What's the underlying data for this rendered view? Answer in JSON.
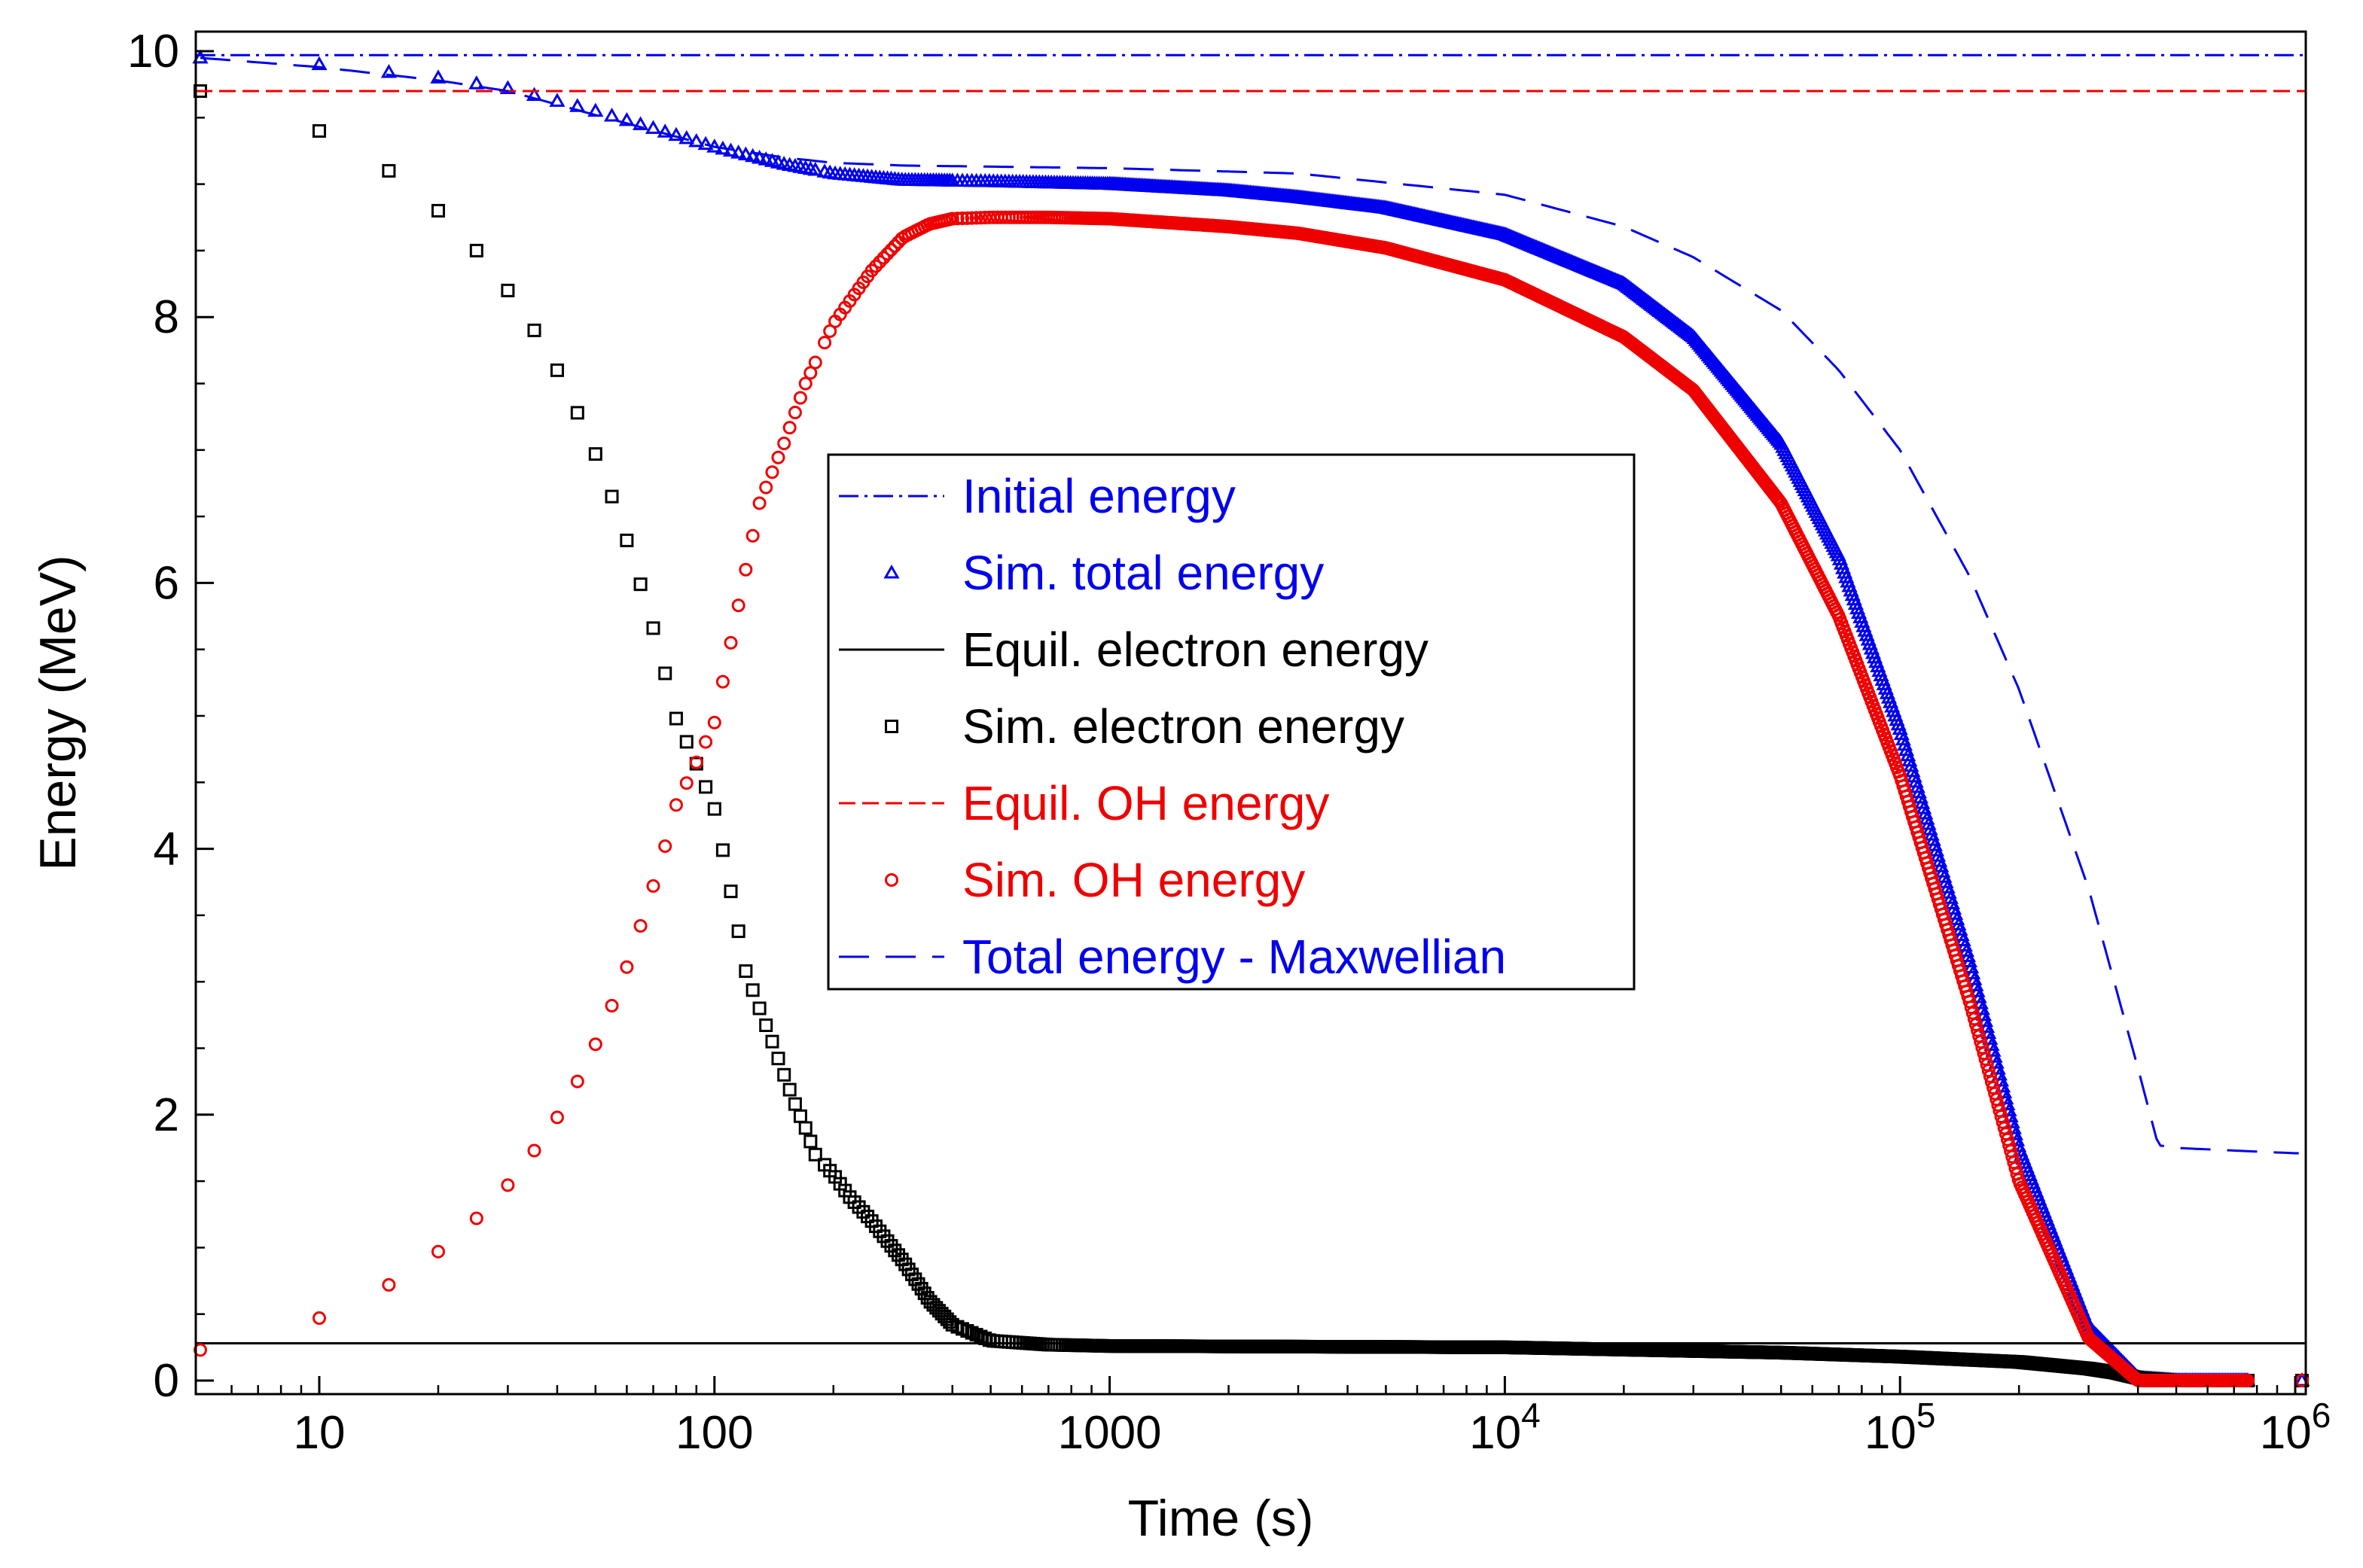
{
  "chart_data": {
    "type": "scatter",
    "title": "",
    "xlabel": "Time (s)",
    "ylabel": "Energy (MeV)",
    "xscale": "log",
    "xlim": [
      5,
      1100000
    ],
    "ylim": [
      -0.1,
      10
    ],
    "grid": false,
    "legend_position": "center",
    "x_ticks": [
      {
        "value": 10,
        "label": "10"
      },
      {
        "value": 100,
        "label": "100"
      },
      {
        "value": 1000,
        "label": "1000"
      },
      {
        "value": 10000,
        "base": "10",
        "exp": "4"
      },
      {
        "value": 100000,
        "base": "10",
        "exp": "5"
      },
      {
        "value": 1000000,
        "base": "10",
        "exp": "6"
      }
    ],
    "y_ticks": [
      {
        "value": 0,
        "label": "0"
      },
      {
        "value": 2,
        "label": "2"
      },
      {
        "value": 4,
        "label": "4"
      },
      {
        "value": 6,
        "label": "6"
      },
      {
        "value": 8,
        "label": "8"
      },
      {
        "value": 10,
        "label": "10"
      }
    ],
    "series": [
      {
        "id": "initial",
        "name": "Initial energy",
        "kind": "hline",
        "color": "#0000ee",
        "dash": "dashdot",
        "y": 9.97
      },
      {
        "id": "simtotal",
        "name": "Sim. total energy",
        "kind": "markers",
        "marker": "triangle",
        "color": "#0000ee",
        "anchors": [
          [
            5,
            9.95
          ],
          [
            10,
            9.9
          ],
          [
            20,
            9.8
          ],
          [
            30,
            9.72
          ],
          [
            50,
            9.55
          ],
          [
            70,
            9.42
          ],
          [
            100,
            9.28
          ],
          [
            150,
            9.15
          ],
          [
            200,
            9.08
          ],
          [
            300,
            9.03
          ],
          [
            500,
            9.02
          ],
          [
            1000,
            9.0
          ],
          [
            2000,
            8.95
          ],
          [
            3000,
            8.9
          ],
          [
            5000,
            8.82
          ],
          [
            10000,
            8.62
          ],
          [
            20000,
            8.25
          ],
          [
            30000,
            7.85
          ],
          [
            50000,
            7.05
          ],
          [
            70000,
            6.2
          ],
          [
            100000,
            4.9
          ],
          [
            150000,
            3.15
          ],
          [
            200000,
            1.75
          ],
          [
            300000,
            0.4
          ],
          [
            400000,
            0.02
          ],
          [
            500000,
            0
          ],
          [
            750000,
            0
          ],
          [
            1000000,
            0
          ]
        ]
      },
      {
        "id": "equilelec",
        "name": "Equil. electron energy",
        "kind": "hline",
        "color": "#000000",
        "dash": "solid",
        "y": 0.28
      },
      {
        "id": "simelec",
        "name": "Sim. electron energy",
        "kind": "markers",
        "marker": "square",
        "color": "#000000",
        "anchors": [
          [
            5,
            9.7
          ],
          [
            10,
            9.4
          ],
          [
            15,
            9.1
          ],
          [
            20,
            8.8
          ],
          [
            25,
            8.5
          ],
          [
            30,
            8.2
          ],
          [
            35,
            7.9
          ],
          [
            40,
            7.6
          ],
          [
            45,
            7.28
          ],
          [
            50,
            6.97
          ],
          [
            55,
            6.65
          ],
          [
            60,
            6.32
          ],
          [
            65,
            5.99
          ],
          [
            70,
            5.66
          ],
          [
            75,
            5.32
          ],
          [
            80,
            4.98
          ],
          [
            90,
            4.64
          ],
          [
            100,
            4.3
          ],
          [
            105,
            3.99
          ],
          [
            110,
            3.68
          ],
          [
            115,
            3.38
          ],
          [
            120,
            3.08
          ],
          [
            130,
            2.8
          ],
          [
            140,
            2.55
          ],
          [
            150,
            2.3
          ],
          [
            160,
            2.08
          ],
          [
            170,
            1.9
          ],
          [
            180,
            1.7
          ],
          [
            200,
            1.55
          ],
          [
            220,
            1.38
          ],
          [
            250,
            1.2
          ],
          [
            300,
            0.9
          ],
          [
            350,
            0.6
          ],
          [
            400,
            0.42
          ],
          [
            500,
            0.3
          ],
          [
            700,
            0.27
          ],
          [
            1000,
            0.26
          ],
          [
            10000,
            0.25
          ],
          [
            50000,
            0.21
          ],
          [
            100000,
            0.18
          ],
          [
            200000,
            0.14
          ],
          [
            300000,
            0.09
          ],
          [
            350000,
            0.06
          ],
          [
            400000,
            0.02
          ],
          [
            500000,
            0
          ],
          [
            750000,
            0
          ],
          [
            1000000,
            0
          ]
        ]
      },
      {
        "id": "equiloh",
        "name": "Equil. OH energy",
        "kind": "hline",
        "color": "#ee0000",
        "dash": "dashed",
        "y": 9.7
      },
      {
        "id": "simoh",
        "name": "Sim. OH energy",
        "kind": "markers",
        "marker": "circle",
        "color": "#ee0000",
        "anchors": [
          [
            5,
            0.23
          ],
          [
            10,
            0.47
          ],
          [
            15,
            0.72
          ],
          [
            20,
            0.97
          ],
          [
            25,
            1.22
          ],
          [
            30,
            1.47
          ],
          [
            35,
            1.73
          ],
          [
            40,
            1.98
          ],
          [
            45,
            2.25
          ],
          [
            50,
            2.53
          ],
          [
            55,
            2.82
          ],
          [
            60,
            3.11
          ],
          [
            65,
            3.42
          ],
          [
            70,
            3.72
          ],
          [
            75,
            4.02
          ],
          [
            80,
            4.33
          ],
          [
            90,
            4.65
          ],
          [
            100,
            4.95
          ],
          [
            110,
            5.55
          ],
          [
            120,
            6.1
          ],
          [
            130,
            6.6
          ],
          [
            150,
            7.05
          ],
          [
            170,
            7.5
          ],
          [
            200,
            7.95
          ],
          [
            250,
            8.35
          ],
          [
            300,
            8.6
          ],
          [
            350,
            8.7
          ],
          [
            400,
            8.74
          ],
          [
            500,
            8.75
          ],
          [
            700,
            8.75
          ],
          [
            1000,
            8.74
          ],
          [
            2000,
            8.68
          ],
          [
            3000,
            8.63
          ],
          [
            5000,
            8.52
          ],
          [
            10000,
            8.28
          ],
          [
            20000,
            7.85
          ],
          [
            30000,
            7.45
          ],
          [
            50000,
            6.6
          ],
          [
            70000,
            5.75
          ],
          [
            100000,
            4.55
          ],
          [
            150000,
            2.85
          ],
          [
            200000,
            1.5
          ],
          [
            300000,
            0.32
          ],
          [
            400000,
            0.0
          ],
          [
            500000,
            0
          ],
          [
            750000,
            0
          ],
          [
            1000000,
            0
          ]
        ]
      },
      {
        "id": "totmax",
        "name": "Total energy - Maxwellian",
        "kind": "line",
        "color": "#0000ee",
        "dash": "longdash",
        "points": [
          [
            5,
            9.95
          ],
          [
            10,
            9.88
          ],
          [
            20,
            9.78
          ],
          [
            30,
            9.7
          ],
          [
            50,
            9.52
          ],
          [
            100,
            9.28
          ],
          [
            150,
            9.2
          ],
          [
            200,
            9.16
          ],
          [
            300,
            9.14
          ],
          [
            1000,
            9.12
          ],
          [
            3000,
            9.08
          ],
          [
            10000,
            8.92
          ],
          [
            20000,
            8.68
          ],
          [
            30000,
            8.45
          ],
          [
            50000,
            8.05
          ],
          [
            70000,
            7.6
          ],
          [
            100000,
            7.0
          ],
          [
            150000,
            6.05
          ],
          [
            200000,
            5.2
          ],
          [
            300000,
            3.7
          ],
          [
            400000,
            2.35
          ],
          [
            450000,
            1.77
          ],
          [
            500000,
            1.75
          ],
          [
            700000,
            1.73
          ],
          [
            1000000,
            1.71
          ]
        ]
      }
    ]
  }
}
